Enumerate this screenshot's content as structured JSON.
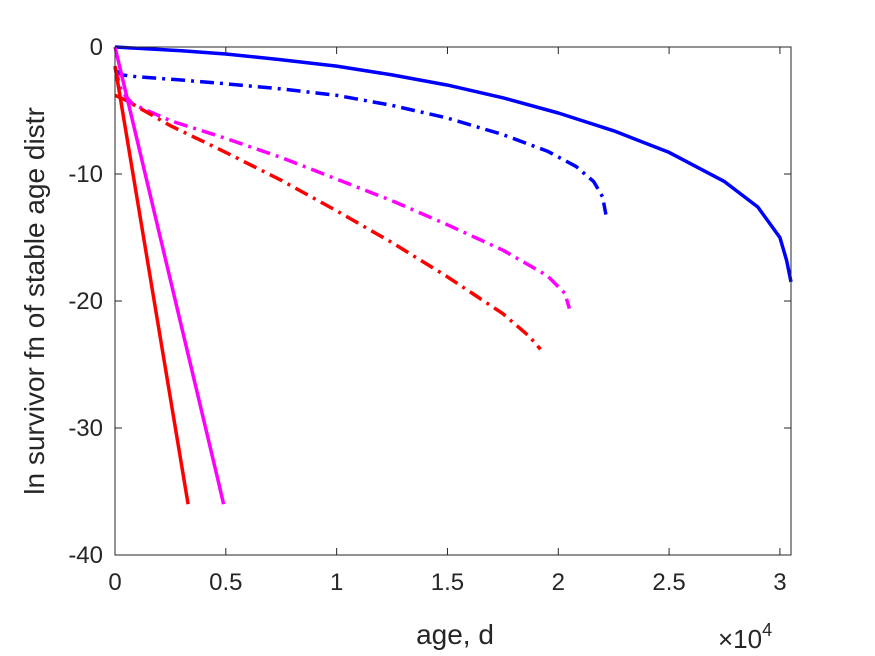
{
  "chart_data": {
    "type": "line",
    "xlabel": "age, d",
    "ylabel": "ln survivor fn of stable age distr",
    "x_exponent_label": "×10",
    "x_exponent_power": "4",
    "xlim": [
      0,
      30500
    ],
    "ylim": [
      -40,
      0
    ],
    "xticks": [
      0,
      5000,
      10000,
      15000,
      20000,
      25000,
      30000
    ],
    "xtick_labels": [
      "0",
      "0.5",
      "1",
      "1.5",
      "2",
      "2.5",
      "3"
    ],
    "yticks": [
      0,
      -10,
      -20,
      -30,
      -40
    ],
    "ytick_labels": [
      "0",
      "-10",
      "-20",
      "-30",
      "-40"
    ],
    "grid": false,
    "legend": "none",
    "series": [
      {
        "color": "#0000ff",
        "style": "solid",
        "points": [
          [
            0,
            0
          ],
          [
            1000,
            -0.1
          ],
          [
            3000,
            -0.3
          ],
          [
            5000,
            -0.55
          ],
          [
            7500,
            -1.0
          ],
          [
            10000,
            -1.5
          ],
          [
            12500,
            -2.2
          ],
          [
            15000,
            -3.0
          ],
          [
            17500,
            -4.0
          ],
          [
            20000,
            -5.2
          ],
          [
            22500,
            -6.6
          ],
          [
            25000,
            -8.3
          ],
          [
            27500,
            -10.6
          ],
          [
            29000,
            -12.6
          ],
          [
            30000,
            -15.0
          ],
          [
            30300,
            -16.8
          ],
          [
            30500,
            -18.5
          ]
        ]
      },
      {
        "color": "#0000ff",
        "style": "dashdot",
        "points": [
          [
            0,
            -1.8
          ],
          [
            300,
            -2.2
          ],
          [
            1000,
            -2.35
          ],
          [
            3000,
            -2.6
          ],
          [
            5000,
            -2.9
          ],
          [
            7500,
            -3.3
          ],
          [
            10000,
            -3.8
          ],
          [
            12500,
            -4.6
          ],
          [
            15000,
            -5.6
          ],
          [
            17500,
            -6.9
          ],
          [
            19500,
            -8.2
          ],
          [
            20800,
            -9.4
          ],
          [
            21600,
            -10.6
          ],
          [
            22000,
            -11.8
          ],
          [
            22150,
            -13.2
          ]
        ]
      },
      {
        "color": "#ff00ff",
        "style": "dashdot",
        "points": [
          [
            0,
            -1.6
          ],
          [
            300,
            -3.5
          ],
          [
            800,
            -4.5
          ],
          [
            2500,
            -5.8
          ],
          [
            5000,
            -7.2
          ],
          [
            7500,
            -8.7
          ],
          [
            10000,
            -10.4
          ],
          [
            12500,
            -12.1
          ],
          [
            15000,
            -14.0
          ],
          [
            17500,
            -16.0
          ],
          [
            19500,
            -18.0
          ],
          [
            20300,
            -19.4
          ],
          [
            20500,
            -20.6
          ]
        ]
      },
      {
        "color": "#ff0000",
        "style": "dashdot",
        "points": [
          [
            0,
            -3.8
          ],
          [
            500,
            -4.2
          ],
          [
            1500,
            -5.2
          ],
          [
            2500,
            -6.2
          ],
          [
            5000,
            -8.3
          ],
          [
            7500,
            -10.5
          ],
          [
            10000,
            -12.9
          ],
          [
            12500,
            -15.4
          ],
          [
            15000,
            -18.1
          ],
          [
            17500,
            -21.0
          ],
          [
            18700,
            -22.8
          ],
          [
            19200,
            -23.8
          ]
        ]
      },
      {
        "color": "#ff00ff",
        "style": "solid",
        "points": [
          [
            0,
            0
          ],
          [
            4700,
            -34.5
          ],
          [
            4900,
            -36.0
          ]
        ]
      },
      {
        "color": "#ff0000",
        "style": "solid",
        "points": [
          [
            0,
            -1.5
          ],
          [
            3300,
            -36.0
          ]
        ]
      }
    ]
  }
}
